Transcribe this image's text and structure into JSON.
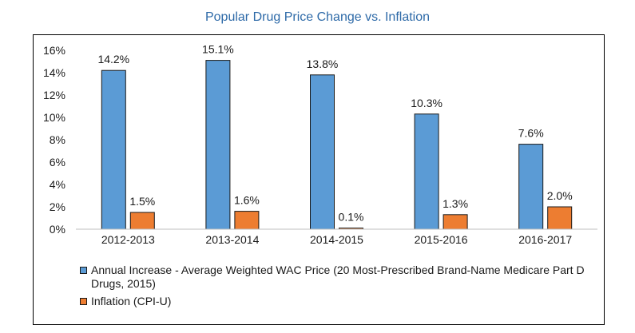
{
  "chart_data": {
    "type": "bar",
    "title": "Popular Drug Price Change vs. Inflation",
    "categories": [
      "2012-2013",
      "2013-2014",
      "2014-2015",
      "2015-2016",
      "2016-2017"
    ],
    "series": [
      {
        "name": "Annual Increase - Average Weighted WAC Price (20 Most-Prescribed Brand-Name Medicare Part D Drugs, 2015)",
        "color": "#5b9bd5",
        "values": [
          14.2,
          15.1,
          13.8,
          10.3,
          7.6
        ],
        "labels": [
          "14.2%",
          "15.1%",
          "13.8%",
          "10.3%",
          "7.6%"
        ]
      },
      {
        "name": "Inflation (CPI-U)",
        "color": "#ed7d31",
        "values": [
          1.5,
          1.6,
          0.1,
          1.3,
          2.0
        ],
        "labels": [
          "1.5%",
          "1.6%",
          "0.1%",
          "1.3%",
          "2.0%"
        ]
      }
    ],
    "ylim": [
      0,
      16
    ],
    "yticks": [
      "0%",
      "2%",
      "4%",
      "6%",
      "8%",
      "10%",
      "12%",
      "14%",
      "16%"
    ],
    "grid": false,
    "legend_position": "bottom-left"
  }
}
